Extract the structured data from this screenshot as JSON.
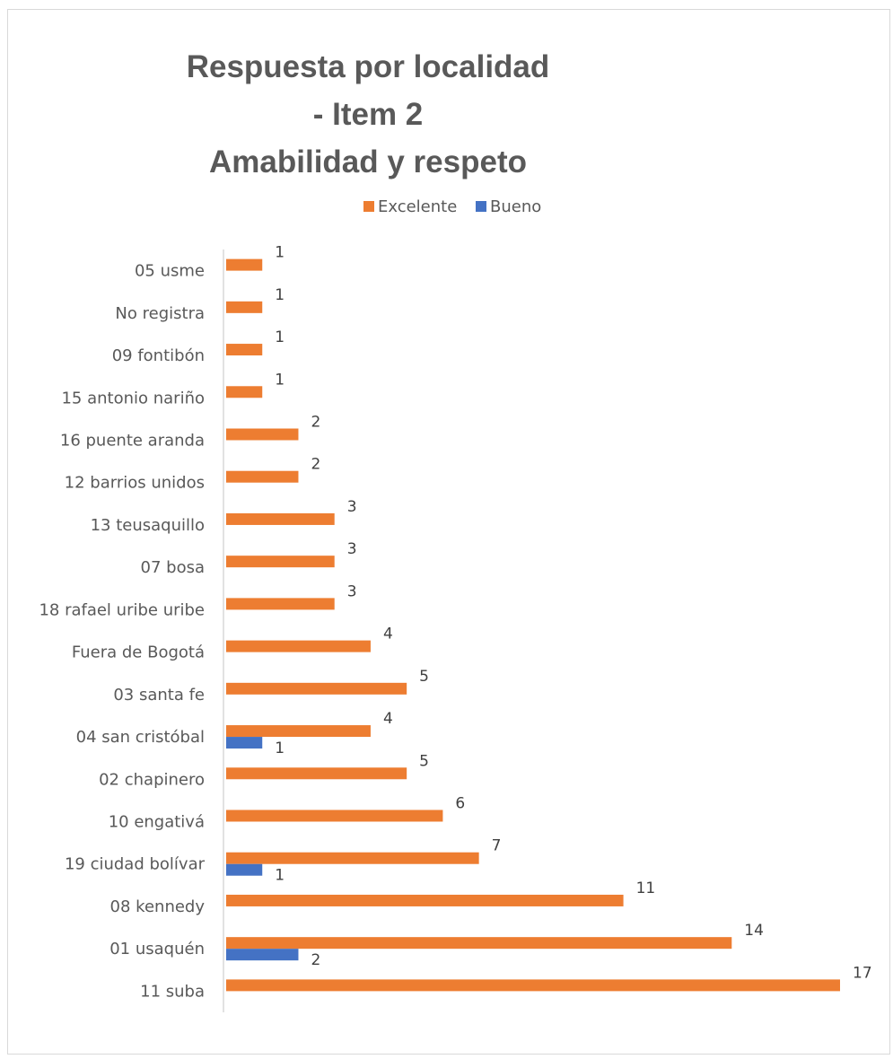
{
  "chart_data": {
    "type": "bar",
    "orientation": "horizontal",
    "title_lines": [
      "Respuesta por localidad",
      "- Item 2",
      "Amabilidad y respeto"
    ],
    "categories": [
      "05  usme",
      "No registra",
      "09  fontibón",
      "15  antonio nariño",
      "16  puente aranda",
      "12  barrios unidos",
      "13  teusaquillo",
      "07  bosa",
      "18  rafael uribe uribe",
      "Fuera de Bogotá",
      "03  santa fe",
      "04  san cristóbal",
      "02  chapinero",
      "10  engativá",
      "19  ciudad bolívar",
      "08  kennedy",
      "01  usaquén",
      "11  suba"
    ],
    "series": [
      {
        "name": "Excelente",
        "color": "#ed7d31",
        "values": [
          1,
          1,
          1,
          1,
          2,
          2,
          3,
          3,
          3,
          4,
          5,
          4,
          5,
          6,
          7,
          11,
          14,
          17
        ]
      },
      {
        "name": "Bueno",
        "color": "#4472c4",
        "values": [
          null,
          null,
          null,
          null,
          null,
          null,
          null,
          null,
          null,
          null,
          null,
          1,
          null,
          null,
          1,
          null,
          2,
          null
        ]
      }
    ],
    "xlim": [
      0,
      17
    ],
    "grid": false,
    "data_labels": true,
    "legend": "top"
  }
}
